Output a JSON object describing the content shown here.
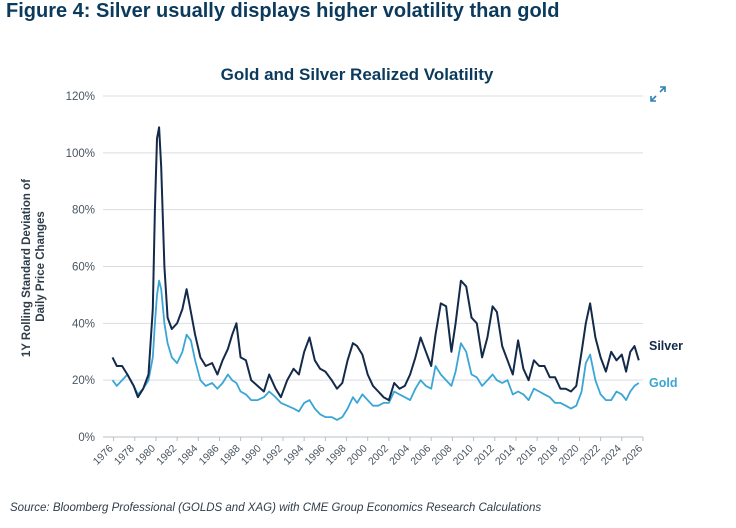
{
  "figure_title": "Figure 4: Silver usually displays higher volatility than gold",
  "source": "Source: Bloomberg Professional (GOLDS and XAG) with CME Group Economics Research Calculations",
  "expand_icon": "expand-arrows-icon",
  "colors": {
    "silver": "#142a4a",
    "gold": "#3aa6d6",
    "title": "#0b3a5c",
    "grid": "#d9dde2",
    "axis_text": "#4a5560"
  },
  "chart_data": {
    "type": "line",
    "title": "Gold and Silver Realized Volatility",
    "xlabel": "",
    "ylabel": "1Y Rolling Standard Deviation of Daily Price Changes",
    "ylim": [
      0,
      120
    ],
    "xlim": [
      1975,
      2026
    ],
    "yticks": [
      0,
      20,
      40,
      60,
      80,
      100,
      120
    ],
    "ytick_labels": [
      "0%",
      "20%",
      "40%",
      "60%",
      "80%",
      "100%",
      "120%"
    ],
    "xticks": [
      "1976",
      "1978",
      "1980",
      "1982",
      "1984",
      "1986",
      "1988",
      "1990",
      "1992",
      "1994",
      "1996",
      "1998",
      "2000",
      "2002",
      "2004",
      "2006",
      "2008",
      "2010",
      "2012",
      "2014",
      "2016",
      "2018",
      "2020",
      "2022",
      "2024",
      "2026"
    ],
    "grid": true,
    "series": [
      {
        "name": "Silver",
        "x": [
          1975.9,
          1976.3,
          1976.8,
          1977.3,
          1977.9,
          1978.3,
          1978.8,
          1979.3,
          1979.7,
          1979.9,
          1980.1,
          1980.3,
          1980.5,
          1980.8,
          1981.1,
          1981.5,
          1982.0,
          1982.5,
          1982.9,
          1983.3,
          1983.7,
          1984.2,
          1984.7,
          1985.3,
          1985.8,
          1986.3,
          1986.8,
          1987.2,
          1987.6,
          1988.0,
          1988.5,
          1989.0,
          1989.6,
          1990.2,
          1990.7,
          1991.3,
          1991.8,
          1992.4,
          1993.0,
          1993.5,
          1994.0,
          1994.5,
          1995.0,
          1995.5,
          1996.0,
          1996.6,
          1997.1,
          1997.6,
          1998.1,
          1998.6,
          1999.0,
          1999.5,
          2000.0,
          2000.5,
          2001.0,
          2001.5,
          2002.0,
          2002.5,
          2003.0,
          2003.5,
          2004.0,
          2004.5,
          2005.0,
          2005.5,
          2006.0,
          2006.4,
          2006.9,
          2007.4,
          2007.9,
          2008.3,
          2008.8,
          2009.3,
          2009.8,
          2010.3,
          2010.8,
          2011.3,
          2011.8,
          2012.2,
          2012.7,
          2013.2,
          2013.7,
          2014.2,
          2014.7,
          2015.2,
          2015.7,
          2016.2,
          2016.7,
          2017.2,
          2017.7,
          2018.2,
          2018.7,
          2019.2,
          2019.7,
          2020.2,
          2020.6,
          2021.0,
          2021.5,
          2022.0,
          2022.5,
          2023.0,
          2023.5,
          2024.0,
          2024.4,
          2024.8,
          2025.2,
          2025.6
        ],
        "values": [
          28,
          25,
          25,
          22,
          18,
          14,
          17,
          22,
          45,
          80,
          105,
          109,
          95,
          60,
          42,
          38,
          40,
          45,
          52,
          44,
          36,
          28,
          25,
          26,
          22,
          27,
          31,
          36,
          40,
          28,
          27,
          20,
          18,
          16,
          22,
          17,
          14,
          20,
          24,
          22,
          30,
          35,
          27,
          24,
          23,
          20,
          17,
          19,
          27,
          33,
          32,
          29,
          22,
          18,
          16,
          14,
          13,
          19,
          17,
          18,
          22,
          28,
          35,
          30,
          25,
          36,
          47,
          46,
          30,
          40,
          55,
          53,
          42,
          40,
          28,
          35,
          46,
          44,
          32,
          27,
          22,
          34,
          24,
          20,
          27,
          25,
          25,
          21,
          21,
          17,
          17,
          16,
          18,
          30,
          40,
          47,
          35,
          28,
          23,
          30,
          27,
          29,
          23,
          30,
          32,
          27
        ]
      },
      {
        "name": "Gold",
        "x": [
          1975.9,
          1976.3,
          1976.8,
          1977.3,
          1977.9,
          1978.3,
          1978.8,
          1979.3,
          1979.7,
          1979.9,
          1980.1,
          1980.3,
          1980.5,
          1980.8,
          1981.1,
          1981.5,
          1982.0,
          1982.5,
          1982.9,
          1983.3,
          1983.7,
          1984.2,
          1984.7,
          1985.3,
          1985.8,
          1986.3,
          1986.8,
          1987.2,
          1987.6,
          1988.0,
          1988.5,
          1989.0,
          1989.6,
          1990.2,
          1990.7,
          1991.3,
          1991.8,
          1992.4,
          1993.0,
          1993.5,
          1994.0,
          1994.5,
          1995.0,
          1995.5,
          1996.0,
          1996.6,
          1997.1,
          1997.6,
          1998.1,
          1998.6,
          1999.0,
          1999.5,
          2000.0,
          2000.5,
          2001.0,
          2001.5,
          2002.0,
          2002.5,
          2003.0,
          2003.5,
          2004.0,
          2004.5,
          2005.0,
          2005.5,
          2006.0,
          2006.4,
          2006.9,
          2007.4,
          2007.9,
          2008.3,
          2008.8,
          2009.3,
          2009.8,
          2010.3,
          2010.8,
          2011.3,
          2011.8,
          2012.2,
          2012.7,
          2013.2,
          2013.7,
          2014.2,
          2014.7,
          2015.2,
          2015.7,
          2016.2,
          2016.7,
          2017.2,
          2017.7,
          2018.2,
          2018.7,
          2019.2,
          2019.7,
          2020.2,
          2020.6,
          2021.0,
          2021.5,
          2022.0,
          2022.5,
          2023.0,
          2023.5,
          2024.0,
          2024.4,
          2024.8,
          2025.2,
          2025.6
        ],
        "values": [
          20,
          18,
          20,
          22,
          18,
          15,
          17,
          20,
          28,
          40,
          50,
          55,
          52,
          40,
          33,
          28,
          26,
          30,
          36,
          34,
          27,
          20,
          18,
          19,
          17,
          19,
          22,
          20,
          19,
          16,
          15,
          13,
          13,
          14,
          16,
          14,
          12,
          11,
          10,
          9,
          12,
          13,
          10,
          8,
          7,
          7,
          6,
          7,
          10,
          14,
          12,
          15,
          13,
          11,
          11,
          12,
          12,
          16,
          15,
          14,
          13,
          17,
          20,
          18,
          17,
          25,
          22,
          20,
          18,
          23,
          33,
          30,
          22,
          21,
          18,
          20,
          22,
          20,
          19,
          20,
          15,
          16,
          15,
          13,
          17,
          16,
          15,
          14,
          12,
          12,
          11,
          10,
          11,
          16,
          26,
          29,
          20,
          15,
          13,
          13,
          16,
          15,
          13,
          16,
          18,
          19
        ]
      }
    ]
  }
}
